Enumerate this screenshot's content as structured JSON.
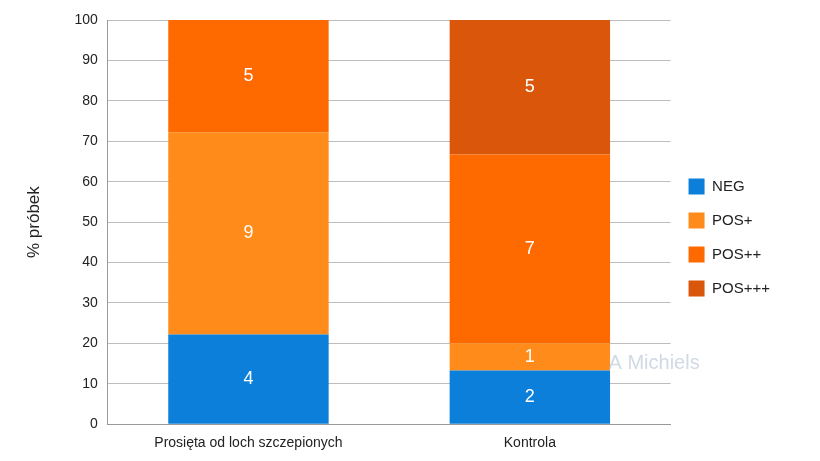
{
  "chart_data": {
    "type": "bar",
    "stacked": true,
    "grid": true,
    "legend": "right",
    "y_label": "% próbek",
    "categories": [
      "Prosięta od loch szczepionych",
      "Kontrola"
    ],
    "series": [
      {
        "name": "NEG",
        "color": "#0b7fd9",
        "values": [
          22.2,
          13.3
        ],
        "counts": [
          4,
          2
        ]
      },
      {
        "name": "POS+",
        "color": "#ff8c1a",
        "values": [
          50.0,
          6.7
        ],
        "counts": [
          9,
          1
        ]
      },
      {
        "name": "POS++",
        "color": "#ff6a00",
        "values": [
          27.8,
          46.7
        ],
        "counts": [
          5,
          7
        ]
      },
      {
        "name": "POS+++",
        "color": "#d9560a",
        "values": [
          0,
          33.3
        ],
        "counts": [
          null,
          5
        ]
      }
    ],
    "ylim": [
      0,
      100
    ],
    "yticks": [
      0,
      10,
      20,
      30,
      40,
      50,
      60,
      70,
      80,
      90,
      100
    ],
    "annotations": [
      "A Michiels"
    ]
  }
}
